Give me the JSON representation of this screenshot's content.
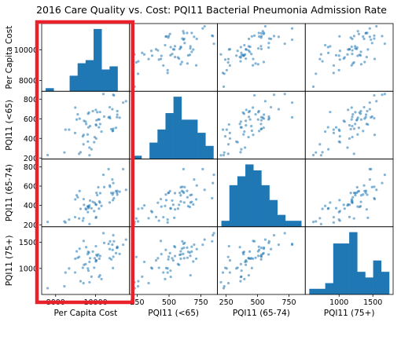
{
  "title": "2016 Care Quality vs. Cost: PQI11 Bacterial Pneumonia Admission Rate",
  "chart_data": {
    "type": "scatter",
    "subtype": "scatter_matrix",
    "title": "2016 Care Quality vs. Cost: PQI11 Bacterial Pneumonia Admission Rate",
    "variables": [
      {
        "name": "Per Capita Cost",
        "range": [
          7300,
          11700
        ],
        "xticks": [
          8000,
          10000
        ],
        "yticks": [
          8000,
          10000
        ]
      },
      {
        "name": "PQI11 (<65)",
        "range": [
          190,
          880
        ],
        "xticks": [
          250,
          500,
          750
        ],
        "yticks": [
          200,
          400,
          600,
          800
        ]
      },
      {
        "name": "PQI11 (65-74)",
        "range": [
          180,
          880
        ],
        "xticks": [
          250,
          500,
          750
        ],
        "yticks": [
          200,
          400,
          600,
          800
        ]
      },
      {
        "name": "PQI11 (75+)",
        "range": [
          500,
          1800
        ],
        "xticks": [
          1000,
          1500
        ],
        "yticks": [
          1000,
          1500
        ]
      }
    ],
    "histograms": [
      {
        "variable": "Per Capita Cost",
        "bin_edges": [
          7400,
          7810,
          8220,
          8630,
          9040,
          9450,
          9860,
          10270,
          10680,
          11090,
          11500
        ],
        "counts": [
          1,
          0,
          0,
          5,
          9,
          10,
          20,
          7,
          8,
          0
        ]
      },
      {
        "variable": "PQI11 (<65)",
        "bin_edges": [
          210,
          270,
          330,
          390,
          450,
          510,
          570,
          630,
          690,
          750,
          810
        ],
        "counts": [
          1,
          0,
          5,
          9,
          14,
          19,
          12,
          12,
          8,
          4
        ]
      },
      {
        "variable": "PQI11 (65-74)",
        "bin_edges": [
          210,
          270,
          330,
          390,
          450,
          510,
          570,
          630,
          690,
          750,
          810
        ],
        "counts": [
          2,
          14,
          17,
          21,
          19,
          14,
          9,
          4,
          2,
          2
        ]
      },
      {
        "variable": "PQI11 (75+)",
        "bin_edges": [
          560,
          698,
          836,
          974,
          1112,
          1250,
          1388,
          1526,
          1664,
          1802,
          1940
        ],
        "counts": [
          1,
          1,
          2,
          9,
          9,
          11,
          4,
          3,
          6,
          4
        ]
      }
    ],
    "highlight": {
      "label": "red box around Per Capita Cost column",
      "column": 0
    },
    "colors": {
      "points": "#1f77b4",
      "bars": "#1f77b4",
      "highlight": "#e8212b",
      "frame": "#000000"
    },
    "grid": false
  }
}
